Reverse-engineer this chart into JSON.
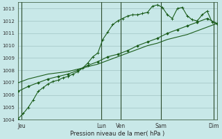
{
  "xlabel": "Pression niveau de la mer( hPa )",
  "bg_color": "#c8e8e8",
  "grid_color": "#a0c4c4",
  "line_color": "#1a5c1a",
  "ylim": [
    1004,
    1013.5
  ],
  "xlim": [
    0,
    120
  ],
  "x_tick_positions": [
    2,
    50,
    62,
    86,
    118
  ],
  "x_labels": [
    "Jeu",
    "Lun",
    "Ven",
    "Sam",
    "Dim"
  ],
  "vline_positions": [
    2,
    50,
    62,
    86,
    118
  ],
  "line1_x": [
    0,
    3,
    6,
    9,
    12,
    15,
    18,
    21,
    24,
    27,
    30,
    33,
    36,
    39,
    42,
    45,
    48,
    51,
    54,
    57,
    60,
    63,
    66,
    69,
    72,
    75,
    78,
    81,
    84,
    87,
    90,
    93,
    96,
    99,
    102,
    105,
    108,
    111,
    114,
    117,
    120
  ],
  "line1_y": [
    1004.1,
    1004.5,
    1005.0,
    1005.6,
    1006.3,
    1006.6,
    1006.9,
    1007.1,
    1007.2,
    1007.4,
    1007.5,
    1007.7,
    1007.9,
    1008.2,
    1008.6,
    1009.1,
    1009.4,
    1010.5,
    1011.1,
    1011.7,
    1012.0,
    1012.2,
    1012.4,
    1012.5,
    1012.5,
    1012.6,
    1012.7,
    1013.2,
    1013.3,
    1013.1,
    1012.5,
    1012.2,
    1013.0,
    1013.1,
    1012.4,
    1012.1,
    1012.0,
    1012.5,
    1012.8,
    1011.9,
    1011.8
  ],
  "line2_x": [
    0,
    6,
    12,
    18,
    24,
    30,
    36,
    42,
    48,
    54,
    60,
    66,
    72,
    78,
    84,
    90,
    96,
    102,
    108,
    114,
    120
  ],
  "line2_y": [
    1006.3,
    1006.7,
    1007.0,
    1007.3,
    1007.5,
    1007.7,
    1008.0,
    1008.4,
    1008.7,
    1009.1,
    1009.3,
    1009.6,
    1010.0,
    1010.3,
    1010.6,
    1011.0,
    1011.3,
    1011.6,
    1011.9,
    1012.2,
    1011.8
  ],
  "line3_x": [
    0,
    6,
    12,
    18,
    24,
    30,
    36,
    42,
    48,
    54,
    60,
    66,
    72,
    78,
    84,
    90,
    96,
    102,
    108,
    114,
    120
  ],
  "line3_y": [
    1007.0,
    1007.3,
    1007.5,
    1007.7,
    1007.8,
    1007.9,
    1008.1,
    1008.3,
    1008.5,
    1008.8,
    1009.1,
    1009.4,
    1009.7,
    1010.0,
    1010.2,
    1010.5,
    1010.7,
    1010.9,
    1011.2,
    1011.5,
    1011.8
  ]
}
